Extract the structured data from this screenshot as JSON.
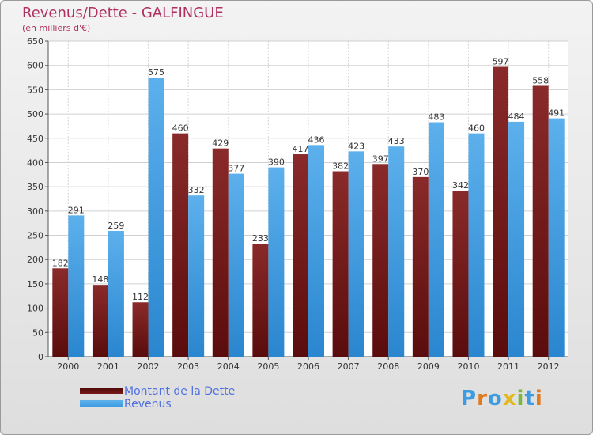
{
  "header": {
    "title": "Revenus/Dette - GALFINGUE",
    "subtitle": "(en milliers d'€)"
  },
  "colors": {
    "dette": "#7a1a1a",
    "revenus": "#3d9be0",
    "title": "#b03060",
    "legend_text": "#4e6fe0"
  },
  "chart_data": {
    "type": "bar",
    "title": "Revenus/Dette - GALFINGUE",
    "subtitle": "(en milliers d'€)",
    "categories": [
      "2000",
      "2001",
      "2002",
      "2003",
      "2004",
      "2005",
      "2006",
      "2007",
      "2008",
      "2009",
      "2010",
      "2011",
      "2012"
    ],
    "series": [
      {
        "name": "Montant de la Dette",
        "values": [
          182,
          148,
          112,
          460,
          429,
          233,
          417,
          382,
          397,
          370,
          342,
          597,
          558
        ]
      },
      {
        "name": "Revenus",
        "values": [
          291,
          259,
          575,
          332,
          377,
          390,
          436,
          423,
          433,
          483,
          460,
          484,
          491
        ]
      }
    ],
    "ylim": [
      0,
      650
    ],
    "yticks": [
      0,
      50,
      100,
      150,
      200,
      250,
      300,
      350,
      400,
      450,
      500,
      550,
      600,
      650
    ],
    "grid": true,
    "legend_position": "bottom-left"
  },
  "legend": {
    "items": [
      {
        "label": "Montant de la Dette"
      },
      {
        "label": "Revenus"
      }
    ]
  },
  "logo": {
    "text": "Proxiti",
    "letters": [
      "P",
      "r",
      "o",
      "x",
      "i",
      "t",
      "i"
    ],
    "letter_colors": [
      "#3d9be0",
      "#e07a1f",
      "#3d9be0",
      "#e0b81f",
      "#7ab83d",
      "#3d9be0",
      "#e07a1f"
    ]
  }
}
